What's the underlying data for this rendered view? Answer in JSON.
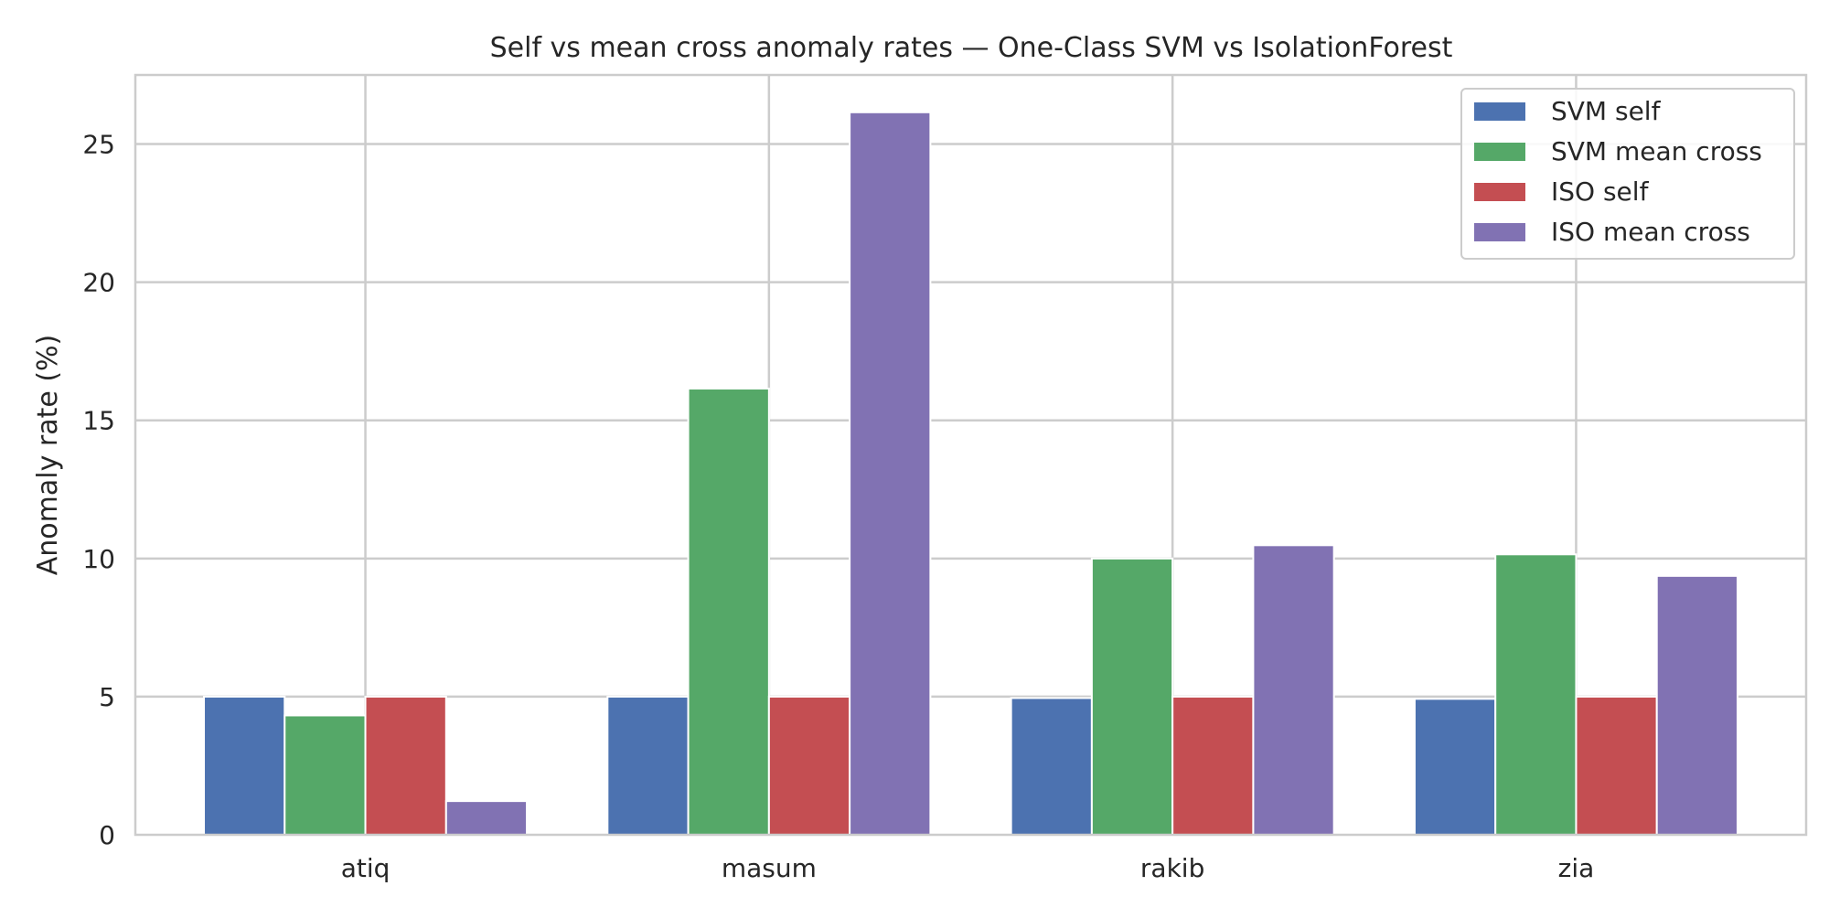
{
  "chart_data": {
    "type": "bar",
    "title": "Self vs mean cross anomaly rates — One-Class SVM vs IsolationForest",
    "xlabel": "",
    "ylabel": "Anomaly rate (%)",
    "categories": [
      "atiq",
      "masum",
      "rakib",
      "zia"
    ],
    "series": [
      {
        "name": "SVM self",
        "color": "#4c72b0",
        "values": [
          5.0,
          5.0,
          4.95,
          4.92
        ]
      },
      {
        "name": "SVM mean cross",
        "color": "#55a868",
        "values": [
          4.32,
          16.15,
          10.0,
          10.15
        ]
      },
      {
        "name": "ISO self",
        "color": "#c44e52",
        "values": [
          5.0,
          5.0,
          5.0,
          5.0
        ]
      },
      {
        "name": "ISO mean cross",
        "color": "#8172b3",
        "values": [
          1.22,
          26.15,
          10.48,
          9.37
        ]
      }
    ],
    "ylim": [
      0,
      27.5
    ],
    "yticks": [
      0,
      5,
      10,
      15,
      20,
      25
    ],
    "grid": true,
    "legend_position": "top-right"
  }
}
